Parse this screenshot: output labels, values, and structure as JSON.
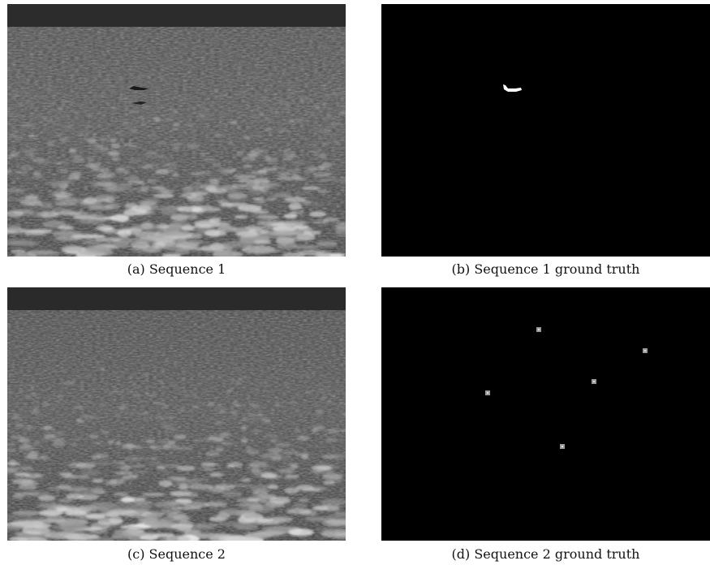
{
  "figure": {
    "panels": [
      {
        "id": "a",
        "kind": "sea-surface-image",
        "caption": "(a) Sequence 1"
      },
      {
        "id": "b",
        "kind": "ground-truth-mask",
        "caption": "(b) Sequence 1 ground truth"
      },
      {
        "id": "c",
        "kind": "sea-surface-image",
        "caption": "(c) Sequence 2"
      },
      {
        "id": "d",
        "kind": "ground-truth-mask",
        "caption": "(d) Sequence 2 ground truth"
      }
    ]
  }
}
